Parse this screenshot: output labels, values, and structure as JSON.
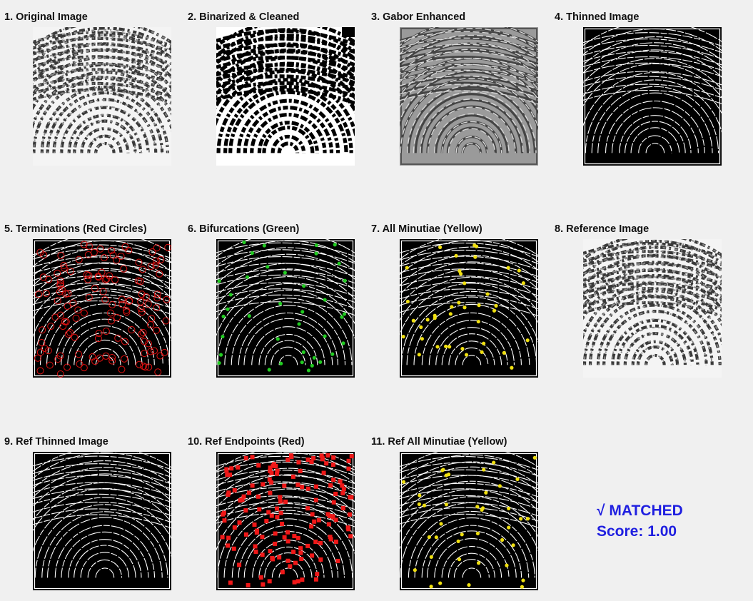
{
  "figure": {
    "panels": [
      {
        "id": "p1",
        "title": "1. Original Image",
        "kind": "gray"
      },
      {
        "id": "p2",
        "title": "2. Binarized & Cleaned",
        "kind": "binary"
      },
      {
        "id": "p3",
        "title": "3. Gabor Enhanced",
        "kind": "gabor"
      },
      {
        "id": "p4",
        "title": "4. Thinned Image",
        "kind": "thin"
      },
      {
        "id": "p5",
        "title": "5. Terminations (Red Circles)",
        "kind": "thin",
        "marker": "circle",
        "marker_color": "#e01010",
        "marker_count": 140
      },
      {
        "id": "p6",
        "title": "6. Bifurcations (Green)",
        "kind": "thin",
        "marker": "dot",
        "marker_color": "#22cc22",
        "marker_count": 38
      },
      {
        "id": "p7",
        "title": "7. All Minutiae (Yellow)",
        "kind": "thin",
        "marker": "dot",
        "marker_color": "#f0e010",
        "marker_count": 40
      },
      {
        "id": "p8",
        "title": "8. Reference Image",
        "kind": "gray"
      },
      {
        "id": "p9",
        "title": "9. Ref Thinned Image",
        "kind": "thin"
      },
      {
        "id": "p10",
        "title": "10. Ref Endpoints (Red)",
        "kind": "thin",
        "marker": "square",
        "marker_color": "#f01818",
        "marker_count": 150
      },
      {
        "id": "p11",
        "title": "11. Ref All Minutiae (Yellow)",
        "kind": "thin",
        "marker": "dot",
        "marker_color": "#f0e010",
        "marker_count": 40
      }
    ],
    "result": {
      "status": "√ MATCHED",
      "score": "Score: 1.00",
      "color": "#1f1fe0"
    }
  }
}
